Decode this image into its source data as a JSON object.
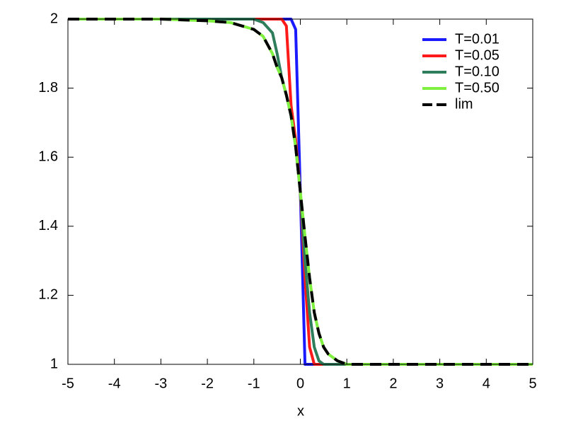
{
  "chart_data": {
    "type": "line",
    "xlabel": "x",
    "x": [
      -5,
      -4,
      -3,
      -2,
      -1.5,
      -1,
      -0.8,
      -0.6,
      -0.5,
      -0.4,
      -0.3,
      -0.2,
      -0.1,
      0,
      0.1,
      0.2,
      0.3,
      0.4,
      0.5,
      0.6,
      0.8,
      1,
      1.5,
      2,
      3,
      4,
      5
    ],
    "series": [
      {
        "name": "T=0.01",
        "color": "#1a1aff",
        "values": [
          2,
          2,
          2,
          2,
          2,
          2,
          2,
          2,
          2,
          2,
          2,
          2,
          1.97,
          1.5,
          1,
          1,
          1,
          1,
          1,
          1,
          1,
          1,
          1,
          1,
          1,
          1,
          1
        ]
      },
      {
        "name": "T=0.05",
        "color": "#ff1a1a",
        "values": [
          2,
          2,
          2,
          2,
          2,
          2,
          2,
          2,
          2,
          2,
          1.98,
          1.75,
          1.65,
          1.5,
          1.25,
          1.05,
          1,
          1,
          1,
          1,
          1,
          1,
          1,
          1,
          1,
          1,
          1
        ]
      },
      {
        "name": "T=0.10",
        "color": "#2e7d5b",
        "values": [
          2,
          2,
          2,
          2,
          2,
          2,
          1.99,
          1.96,
          1.9,
          1.83,
          1.78,
          1.72,
          1.63,
          1.5,
          1.3,
          1.15,
          1.05,
          1.01,
          1,
          1,
          1,
          1,
          1,
          1,
          1,
          1,
          1
        ]
      },
      {
        "name": "T=0.50",
        "color": "#80f040",
        "values": [
          2,
          2,
          2,
          1.995,
          1.99,
          1.97,
          1.95,
          1.9,
          1.86,
          1.83,
          1.78,
          1.72,
          1.63,
          1.5,
          1.37,
          1.25,
          1.15,
          1.09,
          1.05,
          1.03,
          1.01,
          1,
          1,
          1,
          1,
          1,
          1
        ]
      },
      {
        "name": "lim",
        "color": "#000000",
        "dashed": true,
        "values": [
          2,
          2,
          2,
          1.995,
          1.99,
          1.97,
          1.95,
          1.9,
          1.86,
          1.83,
          1.78,
          1.72,
          1.63,
          1.5,
          1.37,
          1.25,
          1.15,
          1.09,
          1.05,
          1.03,
          1.01,
          1,
          1,
          1,
          1,
          1,
          1
        ]
      }
    ],
    "xlim": [
      -5,
      5
    ],
    "xticks": [
      -5,
      -4,
      -3,
      -2,
      -1,
      0,
      1,
      2,
      3,
      4,
      5
    ],
    "ylim": [
      1,
      2
    ],
    "yticks": [
      1,
      1.2,
      1.4,
      1.6,
      1.8,
      2
    ],
    "legend": "top-right"
  }
}
